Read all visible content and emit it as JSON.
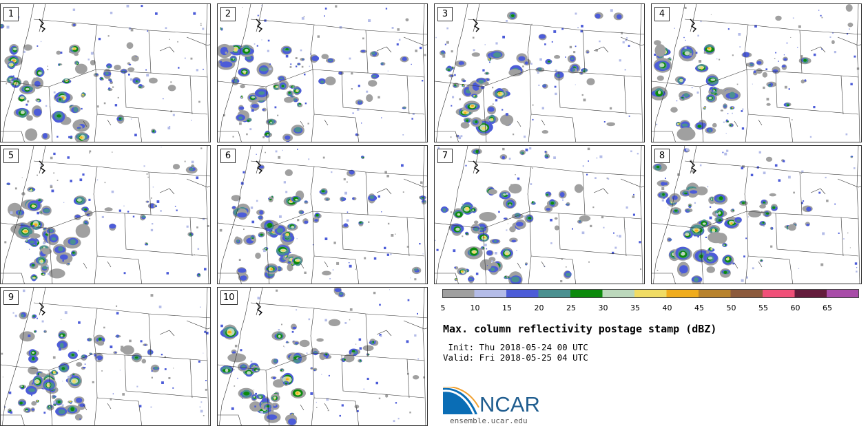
{
  "title": "Max. column reflectivity postage stamp (dBZ)",
  "init": " Init: Thu 2018-05-24 00 UTC",
  "valid": "Valid: Fri 2018-05-25 04 UTC",
  "logo": {
    "name": "NCAR",
    "url": "ensemble.ucar.edu"
  },
  "panels": [
    {
      "label": "1"
    },
    {
      "label": "2"
    },
    {
      "label": "3"
    },
    {
      "label": "4"
    },
    {
      "label": "5"
    },
    {
      "label": "6"
    },
    {
      "label": "7"
    },
    {
      "label": "8"
    },
    {
      "label": "9"
    },
    {
      "label": "10"
    }
  ],
  "colorbar": {
    "unit": "dBZ",
    "ticks": [
      "5",
      "10",
      "15",
      "20",
      "25",
      "30",
      "35",
      "40",
      "45",
      "50",
      "55",
      "60",
      "65"
    ],
    "colors": [
      "#a0a0a0",
      "#b4bce8",
      "#4c5cd8",
      "#4a9090",
      "#0c8a0c",
      "#bcd8bc",
      "#f0dc64",
      "#f0ac1c",
      "#b8822c",
      "#8c5a3c",
      "#f05078",
      "#641c3c",
      "#a84ca8"
    ]
  }
}
